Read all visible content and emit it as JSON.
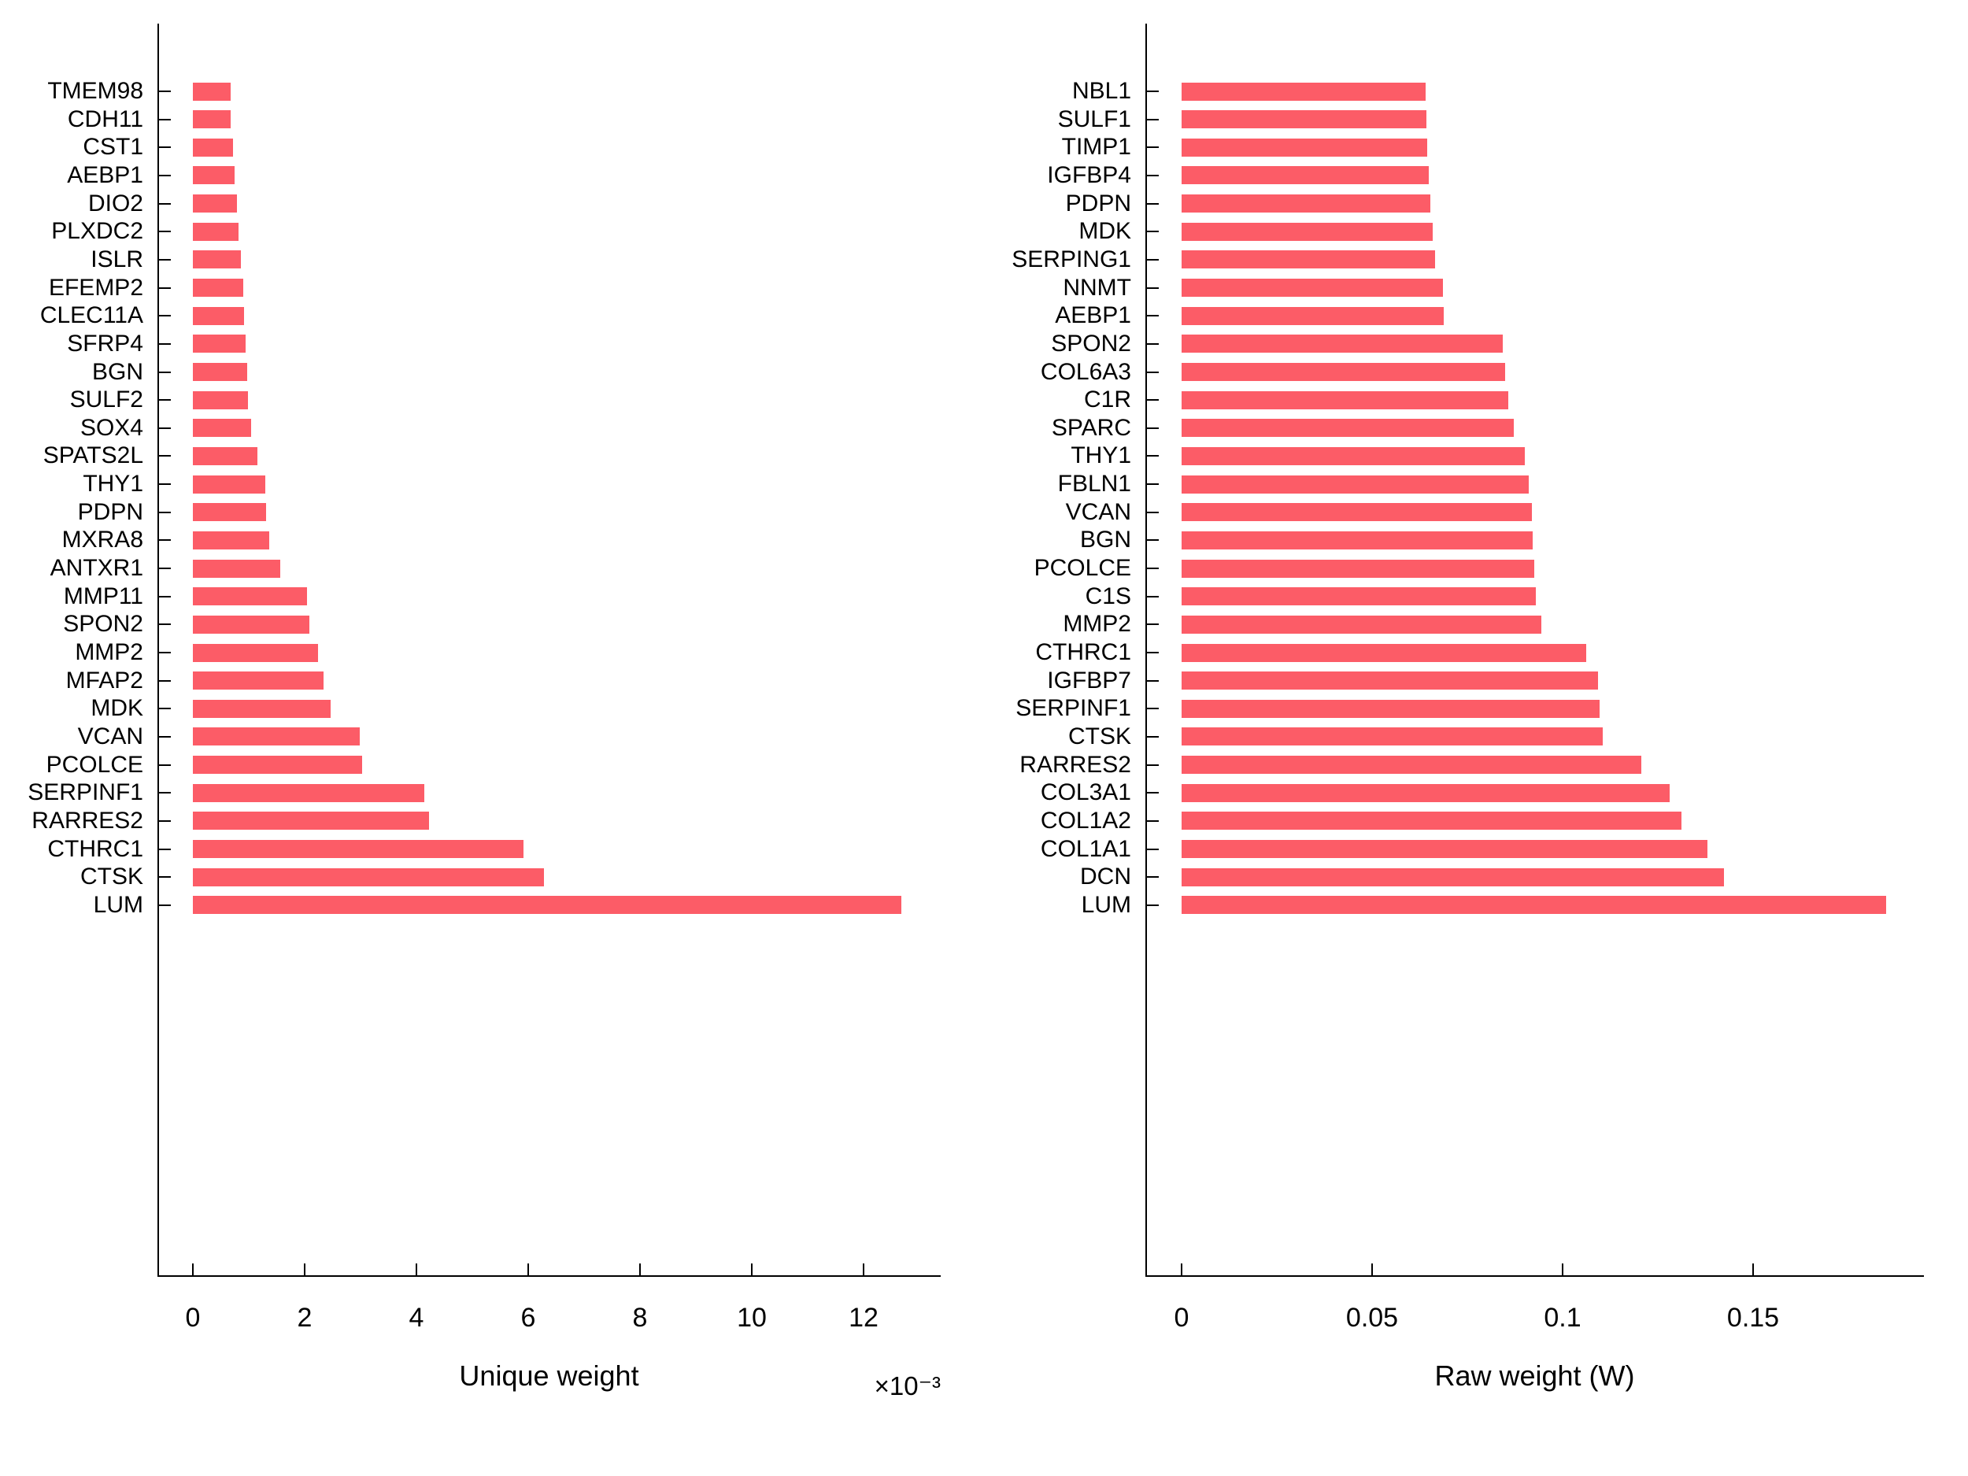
{
  "figure": {
    "background_color": "#ffffff",
    "bar_color": "#fc5c67",
    "axis_color": "#000000",
    "text_color": "#000000"
  },
  "chart_data": [
    {
      "type": "bar",
      "orientation": "horizontal",
      "xlabel": "Unique weight",
      "x_offset_label": "×10⁻³",
      "value_unit_multiplier": 0.001,
      "grid": false,
      "legend": null,
      "xlim": [
        0,
        13.4
      ],
      "xticks": [
        0,
        2,
        4,
        6,
        8,
        10,
        12
      ],
      "xtick_labels": [
        "0",
        "2",
        "4",
        "6",
        "8",
        "10",
        "12"
      ],
      "categories": [
        "TMEM98",
        "CDH11",
        "CST1",
        "AEBP1",
        "DIO2",
        "PLXDC2",
        "ISLR",
        "EFEMP2",
        "CLEC11A",
        "SFRP4",
        "BGN",
        "SULF2",
        "SOX4",
        "SPATS2L",
        "THY1",
        "PDPN",
        "MXRA8",
        "ANTXR1",
        "MMP11",
        "SPON2",
        "MMP2",
        "MFAP2",
        "MDK",
        "VCAN",
        "PCOLCE",
        "SERPINF1",
        "RARRES2",
        "CTHRC1",
        "CTSK",
        "LUM"
      ],
      "values": [
        0.67,
        0.68,
        0.72,
        0.74,
        0.79,
        0.81,
        0.86,
        0.9,
        0.92,
        0.94,
        0.97,
        0.99,
        1.04,
        1.15,
        1.29,
        1.31,
        1.37,
        1.57,
        2.04,
        2.08,
        2.24,
        2.34,
        2.46,
        2.99,
        3.03,
        4.14,
        4.22,
        5.92,
        6.28,
        12.67
      ]
    },
    {
      "type": "bar",
      "orientation": "horizontal",
      "xlabel": "Raw weight (W)",
      "x_offset_label": "",
      "value_unit_multiplier": 1,
      "grid": false,
      "legend": null,
      "xlim": [
        0,
        0.195
      ],
      "xticks": [
        0,
        0.05,
        0.1,
        0.15
      ],
      "xtick_labels": [
        "0",
        "0.05",
        "0.1",
        "0.15"
      ],
      "categories": [
        "NBL1",
        "SULF1",
        "TIMP1",
        "IGFBP4",
        "PDPN",
        "MDK",
        "SERPING1",
        "NNMT",
        "AEBP1",
        "SPON2",
        "COL6A3",
        "C1R",
        "SPARC",
        "THY1",
        "FBLN1",
        "VCAN",
        "BGN",
        "PCOLCE",
        "C1S",
        "MMP2",
        "CTHRC1",
        "IGFBP7",
        "SERPINF1",
        "CTSK",
        "RARRES2",
        "COL3A1",
        "COL1A2",
        "COL1A1",
        "DCN",
        "LUM"
      ],
      "values": [
        0.064,
        0.0642,
        0.0645,
        0.0648,
        0.0652,
        0.066,
        0.0666,
        0.0685,
        0.0688,
        0.0842,
        0.085,
        0.0858,
        0.0872,
        0.09,
        0.0912,
        0.0919,
        0.0922,
        0.0925,
        0.0929,
        0.0944,
        0.1061,
        0.1092,
        0.1098,
        0.1105,
        0.1207,
        0.1282,
        0.1313,
        0.138,
        0.1424,
        0.185
      ]
    }
  ]
}
